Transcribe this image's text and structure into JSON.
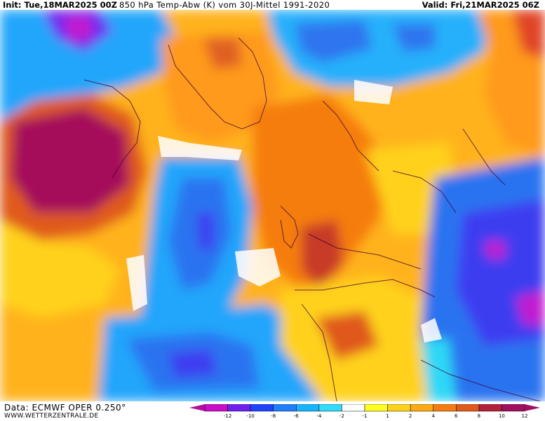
{
  "header": {
    "init": "Init: Tue,18MAR2025 00Z",
    "title": "850 hPa Temp-Abw (K) vom 30J-Mittel 1991-2020",
    "valid": "Valid: Fri,21MAR2025 06Z"
  },
  "footer": {
    "data_source": "Data: ECMWF OPER 0.250°",
    "website": "WWW.WETTERZENTRALE.DE"
  },
  "legend": {
    "levels": [
      "-12",
      "-10",
      "-8",
      "-6",
      "-4",
      "-2",
      "-1",
      "1",
      "2",
      "4",
      "6",
      "8",
      "10",
      "12"
    ],
    "colors": [
      "#cc0cc8",
      "#6e1ff0",
      "#1f43ff",
      "#1f7fff",
      "#19b4ff",
      "#30dcfa",
      "#ffffff",
      "#ffff1f",
      "#ffd21a",
      "#ffaa10",
      "#f57d10",
      "#e05a1a",
      "#b41f3c",
      "#a10f5f"
    ],
    "left_cap_color": "#b3109a",
    "right_cap_color": "#a10f5f"
  },
  "colors": {
    "warm_strong": "#a50f5a",
    "warm": "#e0591a",
    "warm_mid": "#ff9a1c",
    "warm_light": "#ffd11a",
    "neutral": "#ffffff",
    "cold_light": "#2fd8f6",
    "cold": "#1ea5fb",
    "cold_mid": "#2c73f0",
    "cold_strong": "#3d3ef0",
    "cold_extreme": "#c01bd0"
  }
}
